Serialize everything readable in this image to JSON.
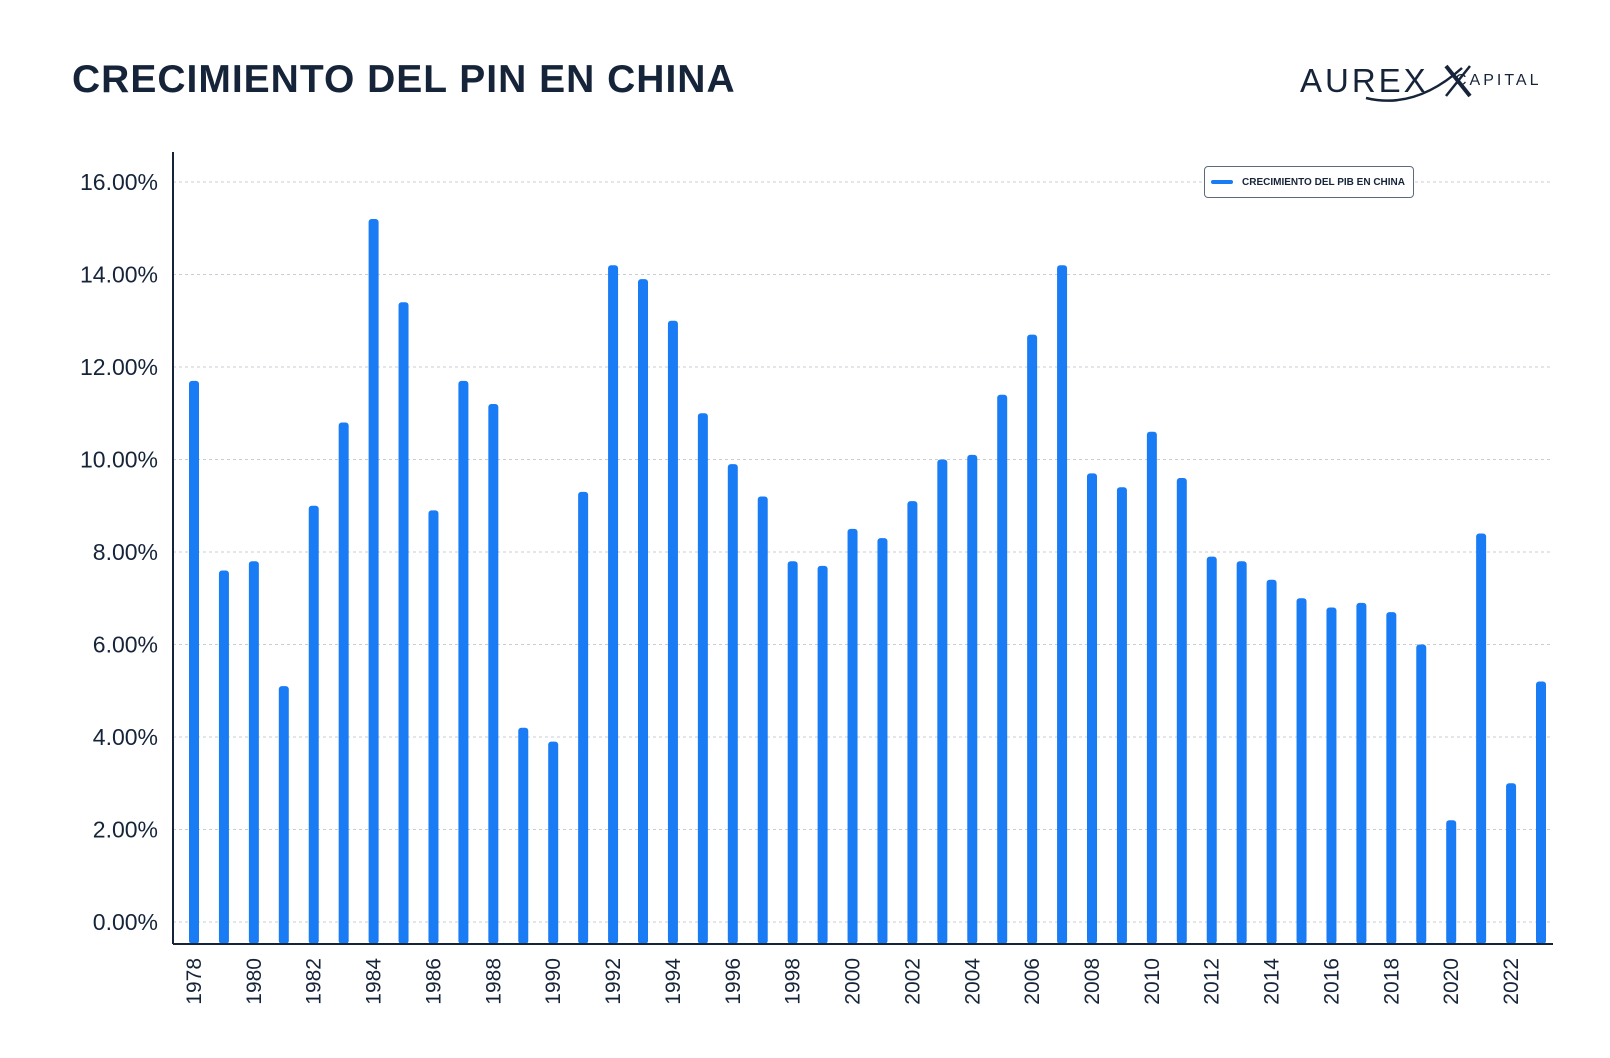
{
  "header": {
    "title": "CRECIMIENTO DEL PIN EN CHINA",
    "logo_main": "AUREX",
    "logo_sub": "CAPITAL"
  },
  "colors": {
    "bar": "#1a7cf4",
    "text": "#16243a",
    "grid": "#c9ced6"
  },
  "chart_data": {
    "type": "bar",
    "legend": {
      "label": "CRECIMIENTO DEL PIB EN CHINA",
      "position": "top-right"
    },
    "ylim": [
      0,
      16
    ],
    "yticks": [
      "0.00%",
      "2.00%",
      "4.00%",
      "6.00%",
      "8.00%",
      "10.00%",
      "12.00%",
      "14.00%",
      "16.00%"
    ],
    "grid": true,
    "categories": [
      "1978",
      "1979",
      "1980",
      "1981",
      "1982",
      "1983",
      "1984",
      "1985",
      "1986",
      "1987",
      "1988",
      "1989",
      "1990",
      "1991",
      "1992",
      "1993",
      "1994",
      "1995",
      "1996",
      "1997",
      "1998",
      "1999",
      "2000",
      "2001",
      "2002",
      "2003",
      "2004",
      "2005",
      "2006",
      "2007",
      "2008",
      "2009",
      "2010",
      "2011",
      "2012",
      "2013",
      "2014",
      "2015",
      "2016",
      "2017",
      "2018",
      "2019",
      "2020",
      "2021",
      "2022",
      "2023"
    ],
    "xtick_labels": [
      "1978",
      "1980",
      "1982",
      "1984",
      "1986",
      "1988",
      "1990",
      "1992",
      "1994",
      "1996",
      "1998",
      "2000",
      "2002",
      "2004",
      "2006",
      "2008",
      "2010",
      "2012",
      "2014",
      "2016",
      "2018",
      "2020",
      "2022"
    ],
    "values": [
      11.7,
      7.6,
      7.8,
      5.1,
      9.0,
      10.8,
      15.2,
      13.4,
      8.9,
      11.7,
      11.2,
      4.2,
      3.9,
      9.3,
      14.2,
      13.9,
      13.0,
      11.0,
      9.9,
      9.2,
      7.8,
      7.7,
      8.5,
      8.3,
      9.1,
      10.0,
      10.1,
      11.4,
      12.7,
      14.2,
      9.7,
      9.4,
      10.6,
      9.6,
      7.9,
      7.8,
      7.4,
      7.0,
      6.8,
      6.9,
      6.7,
      6.0,
      2.2,
      8.4,
      3.0,
      5.2
    ]
  }
}
